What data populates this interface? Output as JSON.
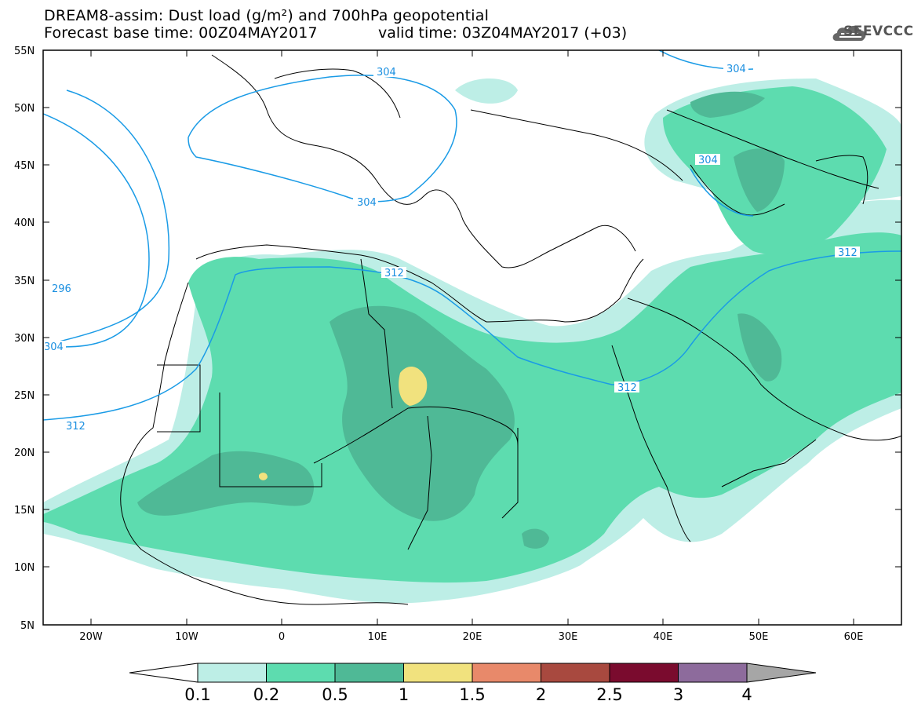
{
  "header": {
    "title_line1": "DREAM8-assim: Dust load (g/m²) and 700hPa geopotential",
    "title_line2": "Forecast base time: 00Z04MAY2017",
    "valid_time": "valid time: 03Z04MAY2017 (+03)",
    "logo_text": "SEEVCCC"
  },
  "map": {
    "lat_labels": [
      "55N",
      "50N",
      "45N",
      "40N",
      "35N",
      "30N",
      "25N",
      "20N",
      "15N",
      "10N",
      "5N"
    ],
    "lon_labels": [
      "20W",
      "10W",
      "0",
      "10E",
      "20E",
      "30E",
      "40E",
      "50E",
      "60E"
    ],
    "contour_labels": [
      "304",
      "304",
      "304",
      "304",
      "296",
      "304",
      "312",
      "312",
      "312",
      "312"
    ],
    "colors": {
      "level_0_1": "#bdeee6",
      "level_0_2": "#5ddcaf",
      "level_0_5": "#4fb996",
      "level_1": "#f1e27e",
      "contour": "#1a9be6",
      "border": "#000000"
    }
  },
  "colorbar": {
    "labels": [
      "0.1",
      "0.2",
      "0.5",
      "1",
      "1.5",
      "2",
      "2.5",
      "3",
      "4"
    ],
    "colors": [
      "#bdeee6",
      "#5ddcaf",
      "#4fb996",
      "#f1e27e",
      "#e8896a",
      "#a8493f",
      "#7a0b2e",
      "#8d6b9c",
      "#a6a6a6"
    ]
  }
}
